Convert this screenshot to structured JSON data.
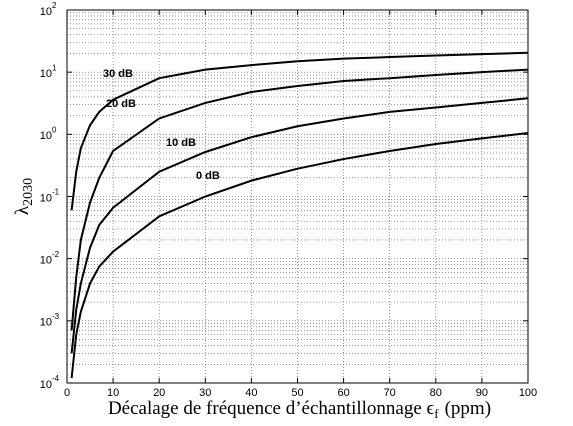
{
  "chart_data": {
    "type": "line",
    "xlabel": [
      "Décalage de fréquence d’échantillonnage ϵ",
      "f",
      "(ppm)"
    ],
    "ylabel": "λ",
    "ylabel_subscript": "2030",
    "x": [
      1,
      2,
      3,
      5,
      7,
      10,
      20,
      30,
      40,
      50,
      60,
      70,
      80,
      90,
      100
    ],
    "series": [
      {
        "name": "30 dB",
        "color": "#000000",
        "values": [
          0.06,
          0.25,
          0.6,
          1.4,
          2.3,
          3.6,
          8,
          11,
          13,
          15,
          16.5,
          17.5,
          18.5,
          19.5,
          20.5
        ]
      },
      {
        "name": "20 dB",
        "color": "#000000",
        "values": [
          0.0007,
          0.005,
          0.02,
          0.08,
          0.2,
          0.54,
          1.8,
          3.2,
          4.8,
          6,
          7.2,
          8,
          9,
          10,
          11
        ]
      },
      {
        "name": "10 dB",
        "color": "#000000",
        "values": [
          0.0003,
          0.0015,
          0.004,
          0.015,
          0.035,
          0.066,
          0.25,
          0.52,
          0.9,
          1.35,
          1.8,
          2.3,
          2.7,
          3.2,
          3.8
        ]
      },
      {
        "name": "0 dB",
        "color": "#000000",
        "values": [
          0.00012,
          0.0006,
          0.0014,
          0.004,
          0.0075,
          0.013,
          0.048,
          0.1,
          0.18,
          0.28,
          0.4,
          0.54,
          0.7,
          0.86,
          1.05
        ]
      }
    ],
    "xlim": [
      0,
      100
    ],
    "xticks": [
      0,
      10,
      20,
      30,
      40,
      50,
      60,
      70,
      80,
      90,
      100
    ],
    "ylim": [
      0.0001,
      100
    ],
    "yticks": [
      {
        "value": 0.0001,
        "label": "10",
        "exponent": "-4"
      },
      {
        "value": 0.001,
        "label": "10",
        "exponent": "-3"
      },
      {
        "value": 0.01,
        "label": "10",
        "exponent": "-2"
      },
      {
        "value": 0.1,
        "label": "10",
        "exponent": "-1"
      },
      {
        "value": 1,
        "label": "10",
        "exponent": "0"
      },
      {
        "value": 10,
        "label": "10",
        "exponent": "1"
      },
      {
        "value": 100,
        "label": "10",
        "exponent": "2"
      }
    ],
    "yscale": "log",
    "grid": true
  }
}
